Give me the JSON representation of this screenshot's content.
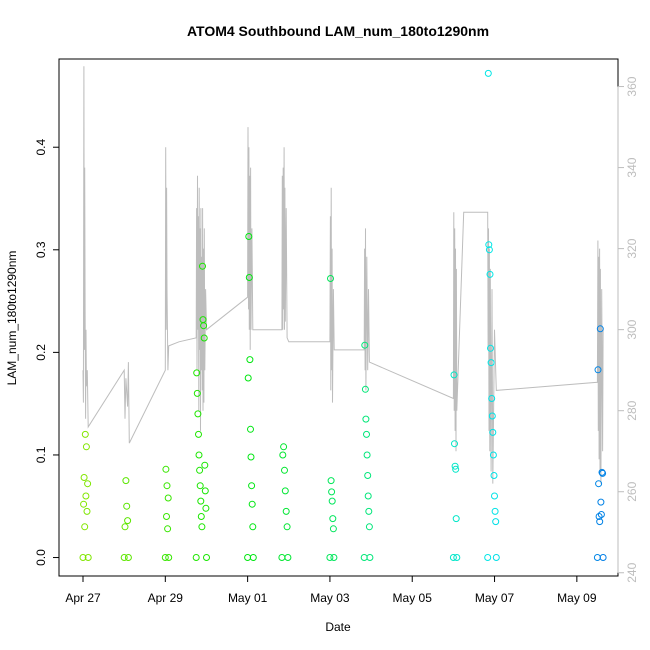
{
  "chart_data": {
    "type": "scatter",
    "title": "ATOM4 Southbound LAM_num_180to1290nm",
    "xlabel": "Date",
    "ylabel": "LAM_num_180to1290nm",
    "y2label": "",
    "x_ticks": [
      "Apr 27",
      "Apr 29",
      "May 01",
      "May 03",
      "May 05",
      "May 07",
      "May 09"
    ],
    "x_tick_dates": [
      "2016-04-27",
      "2016-04-29",
      "2016-05-01",
      "2016-05-03",
      "2016-05-05",
      "2016-05-07",
      "2016-05-09"
    ],
    "xlim": [
      "2016-04-26 10:00",
      "2016-05-10 00:00"
    ],
    "ylim": [
      -0.018,
      0.486
    ],
    "y_ticks": [
      0.0,
      0.1,
      0.2,
      0.3,
      0.4
    ],
    "y2lim": [
      239.2,
      366.8
    ],
    "y2_ticks": [
      240,
      260,
      280,
      300,
      320,
      340,
      360
    ],
    "legend": "none",
    "grid": false,
    "colors": {
      "line_series": "#bdbdbd",
      "axis": "#000000",
      "right_axis": "#bdbdbd"
    },
    "points_series": {
      "name": "",
      "marker": "open-circle",
      "color_scale": "hue by time: green to cyan to blue",
      "points": [
        {
          "x": "2016-04-27 00:00",
          "y": 0.0
        },
        {
          "x": "2016-04-27 00:20",
          "y": 0.052
        },
        {
          "x": "2016-04-27 00:40",
          "y": 0.078
        },
        {
          "x": "2016-04-27 01:00",
          "y": 0.03
        },
        {
          "x": "2016-04-27 01:20",
          "y": 0.12
        },
        {
          "x": "2016-04-27 01:40",
          "y": 0.06
        },
        {
          "x": "2016-04-27 02:00",
          "y": 0.108
        },
        {
          "x": "2016-04-27 02:20",
          "y": 0.045
        },
        {
          "x": "2016-04-27 02:40",
          "y": 0.072
        },
        {
          "x": "2016-04-27 03:00",
          "y": 0.0
        },
        {
          "x": "2016-04-28 00:00",
          "y": 0.0
        },
        {
          "x": "2016-04-28 00:30",
          "y": 0.03
        },
        {
          "x": "2016-04-28 01:00",
          "y": 0.075
        },
        {
          "x": "2016-04-28 01:30",
          "y": 0.05
        },
        {
          "x": "2016-04-28 02:00",
          "y": 0.036
        },
        {
          "x": "2016-04-28 02:30",
          "y": 0.0
        },
        {
          "x": "2016-04-29 00:00",
          "y": 0.0
        },
        {
          "x": "2016-04-29 00:20",
          "y": 0.086
        },
        {
          "x": "2016-04-29 00:40",
          "y": 0.04
        },
        {
          "x": "2016-04-29 01:00",
          "y": 0.07
        },
        {
          "x": "2016-04-29 01:20",
          "y": 0.028
        },
        {
          "x": "2016-04-29 01:40",
          "y": 0.058
        },
        {
          "x": "2016-04-29 02:00",
          "y": 0.0
        },
        {
          "x": "2016-04-29 18:00",
          "y": 0.0
        },
        {
          "x": "2016-04-29 18:20",
          "y": 0.18
        },
        {
          "x": "2016-04-29 18:40",
          "y": 0.16
        },
        {
          "x": "2016-04-29 19:00",
          "y": 0.14
        },
        {
          "x": "2016-04-29 19:20",
          "y": 0.12
        },
        {
          "x": "2016-04-29 19:40",
          "y": 0.1
        },
        {
          "x": "2016-04-29 20:00",
          "y": 0.085
        },
        {
          "x": "2016-04-29 20:20",
          "y": 0.07
        },
        {
          "x": "2016-04-29 20:40",
          "y": 0.055
        },
        {
          "x": "2016-04-29 21:00",
          "y": 0.04
        },
        {
          "x": "2016-04-29 21:20",
          "y": 0.03
        },
        {
          "x": "2016-04-29 21:40",
          "y": 0.284
        },
        {
          "x": "2016-04-29 22:00",
          "y": 0.232
        },
        {
          "x": "2016-04-29 22:20",
          "y": 0.226
        },
        {
          "x": "2016-04-29 22:40",
          "y": 0.214
        },
        {
          "x": "2016-04-29 23:00",
          "y": 0.09
        },
        {
          "x": "2016-04-29 23:20",
          "y": 0.065
        },
        {
          "x": "2016-04-29 23:40",
          "y": 0.048
        },
        {
          "x": "2016-04-30 00:00",
          "y": 0.0
        },
        {
          "x": "2016-05-01 00:00",
          "y": 0.0
        },
        {
          "x": "2016-05-01 00:20",
          "y": 0.175
        },
        {
          "x": "2016-05-01 00:40",
          "y": 0.313
        },
        {
          "x": "2016-05-01 01:00",
          "y": 0.273
        },
        {
          "x": "2016-05-01 01:20",
          "y": 0.193
        },
        {
          "x": "2016-05-01 01:40",
          "y": 0.125
        },
        {
          "x": "2016-05-01 02:00",
          "y": 0.098
        },
        {
          "x": "2016-05-01 02:20",
          "y": 0.07
        },
        {
          "x": "2016-05-01 02:40",
          "y": 0.052
        },
        {
          "x": "2016-05-01 03:00",
          "y": 0.03
        },
        {
          "x": "2016-05-01 03:20",
          "y": 0.0
        },
        {
          "x": "2016-05-01 20:00",
          "y": 0.0
        },
        {
          "x": "2016-05-01 20:30",
          "y": 0.1
        },
        {
          "x": "2016-05-01 21:00",
          "y": 0.108
        },
        {
          "x": "2016-05-01 21:30",
          "y": 0.085
        },
        {
          "x": "2016-05-01 22:00",
          "y": 0.065
        },
        {
          "x": "2016-05-01 22:30",
          "y": 0.045
        },
        {
          "x": "2016-05-01 23:00",
          "y": 0.03
        },
        {
          "x": "2016-05-01 23:30",
          "y": 0.0
        },
        {
          "x": "2016-05-03 00:00",
          "y": 0.0
        },
        {
          "x": "2016-05-03 00:20",
          "y": 0.272
        },
        {
          "x": "2016-05-03 00:40",
          "y": 0.075
        },
        {
          "x": "2016-05-03 01:00",
          "y": 0.064
        },
        {
          "x": "2016-05-03 01:20",
          "y": 0.055
        },
        {
          "x": "2016-05-03 01:40",
          "y": 0.038
        },
        {
          "x": "2016-05-03 02:00",
          "y": 0.028
        },
        {
          "x": "2016-05-03 02:20",
          "y": 0.0
        },
        {
          "x": "2016-05-03 20:00",
          "y": 0.0
        },
        {
          "x": "2016-05-03 20:20",
          "y": 0.207
        },
        {
          "x": "2016-05-03 20:40",
          "y": 0.164
        },
        {
          "x": "2016-05-03 21:00",
          "y": 0.135
        },
        {
          "x": "2016-05-03 21:20",
          "y": 0.12
        },
        {
          "x": "2016-05-03 21:40",
          "y": 0.1
        },
        {
          "x": "2016-05-03 22:00",
          "y": 0.08
        },
        {
          "x": "2016-05-03 22:20",
          "y": 0.06
        },
        {
          "x": "2016-05-03 22:40",
          "y": 0.045
        },
        {
          "x": "2016-05-03 23:00",
          "y": 0.03
        },
        {
          "x": "2016-05-03 23:20",
          "y": 0.0
        },
        {
          "x": "2016-05-06 00:00",
          "y": 0.0
        },
        {
          "x": "2016-05-06 00:20",
          "y": 0.178
        },
        {
          "x": "2016-05-06 00:40",
          "y": 0.111
        },
        {
          "x": "2016-05-06 01:00",
          "y": 0.089
        },
        {
          "x": "2016-05-06 01:20",
          "y": 0.086
        },
        {
          "x": "2016-05-06 01:40",
          "y": 0.038
        },
        {
          "x": "2016-05-06 02:00",
          "y": 0.0
        },
        {
          "x": "2016-05-06 20:00",
          "y": 0.0
        },
        {
          "x": "2016-05-06 20:20",
          "y": 0.472
        },
        {
          "x": "2016-05-06 20:40",
          "y": 0.305
        },
        {
          "x": "2016-05-06 21:00",
          "y": 0.3
        },
        {
          "x": "2016-05-06 21:20",
          "y": 0.276
        },
        {
          "x": "2016-05-06 21:40",
          "y": 0.204
        },
        {
          "x": "2016-05-06 22:00",
          "y": 0.19
        },
        {
          "x": "2016-05-06 22:20",
          "y": 0.155
        },
        {
          "x": "2016-05-06 22:40",
          "y": 0.138
        },
        {
          "x": "2016-05-06 23:00",
          "y": 0.122
        },
        {
          "x": "2016-05-06 23:20",
          "y": 0.1
        },
        {
          "x": "2016-05-06 23:40",
          "y": 0.08
        },
        {
          "x": "2016-05-07 00:00",
          "y": 0.06
        },
        {
          "x": "2016-05-07 00:20",
          "y": 0.045
        },
        {
          "x": "2016-05-07 00:40",
          "y": 0.035
        },
        {
          "x": "2016-05-07 01:00",
          "y": 0.0
        },
        {
          "x": "2016-05-09 12:00",
          "y": 0.0
        },
        {
          "x": "2016-05-09 12:20",
          "y": 0.183
        },
        {
          "x": "2016-05-09 12:40",
          "y": 0.072
        },
        {
          "x": "2016-05-09 13:00",
          "y": 0.04
        },
        {
          "x": "2016-05-09 13:20",
          "y": 0.035
        },
        {
          "x": "2016-05-09 13:40",
          "y": 0.223
        },
        {
          "x": "2016-05-09 14:00",
          "y": 0.054
        },
        {
          "x": "2016-05-09 14:20",
          "y": 0.042
        },
        {
          "x": "2016-05-09 14:40",
          "y": 0.083
        },
        {
          "x": "2016-05-09 15:00",
          "y": 0.082
        },
        {
          "x": "2016-05-09 15:20",
          "y": 0.0
        }
      ]
    },
    "line_series": {
      "name": "",
      "axis": "right",
      "color": "#bdbdbd",
      "points": [
        {
          "x": "2016-04-27 00:00",
          "y": 290
        },
        {
          "x": "2016-04-27 00:15",
          "y": 282
        },
        {
          "x": "2016-04-27 00:30",
          "y": 365
        },
        {
          "x": "2016-04-27 00:45",
          "y": 295
        },
        {
          "x": "2016-04-27 01:00",
          "y": 340
        },
        {
          "x": "2016-04-27 01:15",
          "y": 305
        },
        {
          "x": "2016-04-27 01:30",
          "y": 278
        },
        {
          "x": "2016-04-27 01:45",
          "y": 300
        },
        {
          "x": "2016-04-27 02:00",
          "y": 286
        },
        {
          "x": "2016-04-27 02:30",
          "y": 290
        },
        {
          "x": "2016-04-27 03:00",
          "y": 276
        },
        {
          "x": "2016-04-28 00:00",
          "y": 290
        },
        {
          "x": "2016-04-28 00:30",
          "y": 278
        },
        {
          "x": "2016-04-28 01:00",
          "y": 288
        },
        {
          "x": "2016-04-28 02:00",
          "y": 281
        },
        {
          "x": "2016-04-28 02:30",
          "y": 292
        },
        {
          "x": "2016-04-28 03:00",
          "y": 272
        },
        {
          "x": "2016-04-29 00:00",
          "y": 290
        },
        {
          "x": "2016-04-29 00:15",
          "y": 345
        },
        {
          "x": "2016-04-29 00:30",
          "y": 300
        },
        {
          "x": "2016-04-29 00:45",
          "y": 335
        },
        {
          "x": "2016-04-29 01:00",
          "y": 310
        },
        {
          "x": "2016-04-29 01:30",
          "y": 290
        },
        {
          "x": "2016-04-29 02:00",
          "y": 296
        },
        {
          "x": "2016-04-29 08:00",
          "y": 297
        },
        {
          "x": "2016-04-29 18:00",
          "y": 298
        },
        {
          "x": "2016-04-29 18:15",
          "y": 330
        },
        {
          "x": "2016-04-29 18:30",
          "y": 290
        },
        {
          "x": "2016-04-29 18:45",
          "y": 338
        },
        {
          "x": "2016-04-29 19:00",
          "y": 300
        },
        {
          "x": "2016-04-29 19:15",
          "y": 328
        },
        {
          "x": "2016-04-29 19:30",
          "y": 280
        },
        {
          "x": "2016-04-29 19:45",
          "y": 335
        },
        {
          "x": "2016-04-29 20:00",
          "y": 295
        },
        {
          "x": "2016-04-29 20:15",
          "y": 325
        },
        {
          "x": "2016-04-29 20:30",
          "y": 275
        },
        {
          "x": "2016-04-29 20:45",
          "y": 330
        },
        {
          "x": "2016-04-29 21:00",
          "y": 290
        },
        {
          "x": "2016-04-29 21:15",
          "y": 318
        },
        {
          "x": "2016-04-29 21:30",
          "y": 285
        },
        {
          "x": "2016-04-29 21:45",
          "y": 330
        },
        {
          "x": "2016-04-29 22:00",
          "y": 280
        },
        {
          "x": "2016-04-29 22:15",
          "y": 320
        },
        {
          "x": "2016-04-29 22:30",
          "y": 282
        },
        {
          "x": "2016-04-29 22:45",
          "y": 325
        },
        {
          "x": "2016-04-29 23:00",
          "y": 290
        },
        {
          "x": "2016-04-29 23:30",
          "y": 310
        },
        {
          "x": "2016-04-30 00:00",
          "y": 300
        },
        {
          "x": "2016-05-01 00:00",
          "y": 308
        },
        {
          "x": "2016-05-01 00:15",
          "y": 350
        },
        {
          "x": "2016-05-01 00:30",
          "y": 305
        },
        {
          "x": "2016-05-01 00:45",
          "y": 345
        },
        {
          "x": "2016-05-01 01:00",
          "y": 300
        },
        {
          "x": "2016-05-01 01:15",
          "y": 338
        },
        {
          "x": "2016-05-01 01:30",
          "y": 295
        },
        {
          "x": "2016-05-01 01:45",
          "y": 340
        },
        {
          "x": "2016-05-01 02:00",
          "y": 300
        },
        {
          "x": "2016-05-01 02:30",
          "y": 325
        },
        {
          "x": "2016-05-01 03:00",
          "y": 300
        },
        {
          "x": "2016-05-01 12:00",
          "y": 300
        },
        {
          "x": "2016-05-01 20:00",
          "y": 300
        },
        {
          "x": "2016-05-01 20:15",
          "y": 338
        },
        {
          "x": "2016-05-01 20:30",
          "y": 300
        },
        {
          "x": "2016-05-01 20:45",
          "y": 340
        },
        {
          "x": "2016-05-01 21:00",
          "y": 305
        },
        {
          "x": "2016-05-01 21:15",
          "y": 345
        },
        {
          "x": "2016-05-01 21:30",
          "y": 300
        },
        {
          "x": "2016-05-01 21:45",
          "y": 335
        },
        {
          "x": "2016-05-01 22:00",
          "y": 302
        },
        {
          "x": "2016-05-01 22:30",
          "y": 330
        },
        {
          "x": "2016-05-01 23:00",
          "y": 298
        },
        {
          "x": "2016-05-02 00:00",
          "y": 297
        },
        {
          "x": "2016-05-03 00:00",
          "y": 297
        },
        {
          "x": "2016-05-03 00:15",
          "y": 328
        },
        {
          "x": "2016-05-03 00:30",
          "y": 285
        },
        {
          "x": "2016-05-03 00:45",
          "y": 335
        },
        {
          "x": "2016-05-03 01:00",
          "y": 290
        },
        {
          "x": "2016-05-03 01:15",
          "y": 320
        },
        {
          "x": "2016-05-03 01:30",
          "y": 282
        },
        {
          "x": "2016-05-03 02:00",
          "y": 310
        },
        {
          "x": "2016-05-03 02:30",
          "y": 295
        },
        {
          "x": "2016-05-03 12:00",
          "y": 295
        },
        {
          "x": "2016-05-03 20:00",
          "y": 295
        },
        {
          "x": "2016-05-03 20:15",
          "y": 320
        },
        {
          "x": "2016-05-03 20:30",
          "y": 290
        },
        {
          "x": "2016-05-03 20:45",
          "y": 325
        },
        {
          "x": "2016-05-03 21:00",
          "y": 285
        },
        {
          "x": "2016-05-03 21:30",
          "y": 318
        },
        {
          "x": "2016-05-03 22:00",
          "y": 290
        },
        {
          "x": "2016-05-03 22:30",
          "y": 310
        },
        {
          "x": "2016-05-03 23:00",
          "y": 292
        },
        {
          "x": "2016-05-06 00:00",
          "y": 283
        },
        {
          "x": "2016-05-06 00:15",
          "y": 329
        },
        {
          "x": "2016-05-06 00:30",
          "y": 280
        },
        {
          "x": "2016-05-06 00:45",
          "y": 325
        },
        {
          "x": "2016-05-06 01:00",
          "y": 275
        },
        {
          "x": "2016-05-06 01:15",
          "y": 320
        },
        {
          "x": "2016-05-06 01:30",
          "y": 270
        },
        {
          "x": "2016-05-06 01:45",
          "y": 315
        },
        {
          "x": "2016-05-06 02:00",
          "y": 280
        },
        {
          "x": "2016-05-06 06:00",
          "y": 329
        },
        {
          "x": "2016-05-06 12:00",
          "y": 329
        },
        {
          "x": "2016-05-06 20:00",
          "y": 329
        },
        {
          "x": "2016-05-06 20:15",
          "y": 295
        },
        {
          "x": "2016-05-06 20:30",
          "y": 325
        },
        {
          "x": "2016-05-06 20:45",
          "y": 275
        },
        {
          "x": "2016-05-06 21:00",
          "y": 320
        },
        {
          "x": "2016-05-06 21:15",
          "y": 270
        },
        {
          "x": "2016-05-06 21:30",
          "y": 315
        },
        {
          "x": "2016-05-06 22:00",
          "y": 265
        },
        {
          "x": "2016-05-06 22:30",
          "y": 310
        },
        {
          "x": "2016-05-06 23:00",
          "y": 262
        },
        {
          "x": "2016-05-07 00:00",
          "y": 300
        },
        {
          "x": "2016-05-07 01:00",
          "y": 285
        },
        {
          "x": "2016-05-09 12:00",
          "y": 287
        },
        {
          "x": "2016-05-09 12:15",
          "y": 322
        },
        {
          "x": "2016-05-09 12:30",
          "y": 275
        },
        {
          "x": "2016-05-09 12:45",
          "y": 318
        },
        {
          "x": "2016-05-09 13:00",
          "y": 268
        },
        {
          "x": "2016-05-09 13:15",
          "y": 320
        },
        {
          "x": "2016-05-09 13:30",
          "y": 265
        },
        {
          "x": "2016-05-09 13:45",
          "y": 315
        },
        {
          "x": "2016-05-09 14:00",
          "y": 262
        },
        {
          "x": "2016-05-09 14:30",
          "y": 310
        },
        {
          "x": "2016-05-09 15:00",
          "y": 270
        },
        {
          "x": "2016-05-09 15:20",
          "y": 300
        }
      ]
    }
  }
}
